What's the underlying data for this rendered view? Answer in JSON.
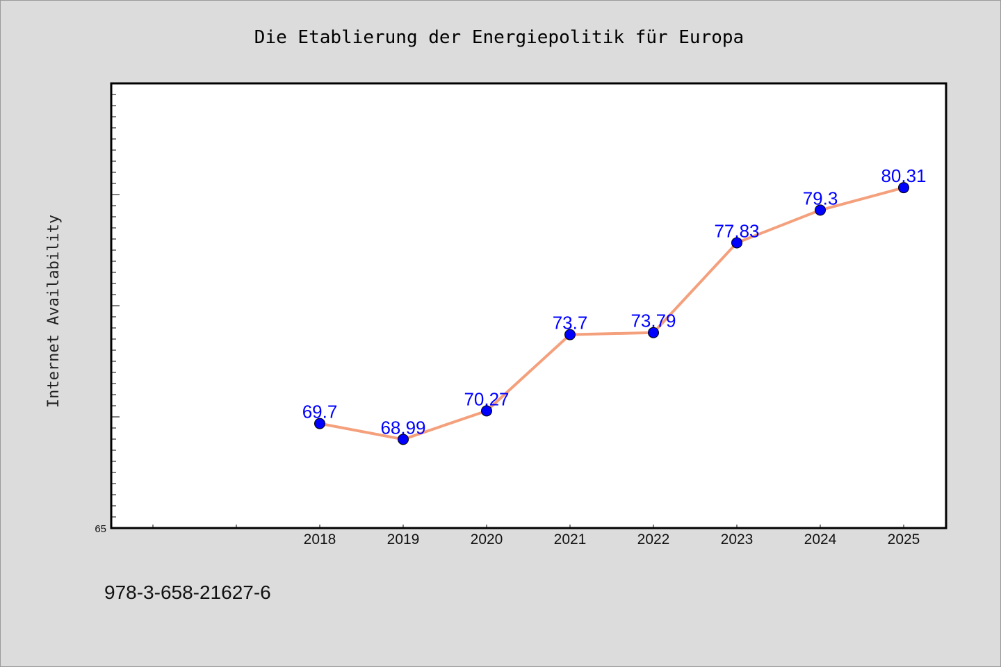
{
  "chart_data": {
    "type": "line",
    "title": "Die Etablierung der Energiepolitik für Europa",
    "ylabel": "Internet Availability",
    "xlabel": "",
    "ylim": [
      65,
      85
    ],
    "y_tick_labels": [
      "65"
    ],
    "x": [
      "2018",
      "2019",
      "2020",
      "2021",
      "2022",
      "2023",
      "2024",
      "2025"
    ],
    "series": [
      {
        "values": [
          69.7,
          68.99,
          70.27,
          73.7,
          73.79,
          77.83,
          79.3,
          80.31
        ]
      }
    ],
    "data_labels": [
      "69.7",
      "68.99",
      "70.27",
      "73.7",
      "73.79",
      "77.83",
      "79.3",
      "80.31"
    ],
    "line_color": "#f4a07c",
    "marker_color": "#0000ff",
    "label_color": "#0000ff",
    "grid": false,
    "legend": "none"
  },
  "footer_text": "978-3-658-21627-6"
}
